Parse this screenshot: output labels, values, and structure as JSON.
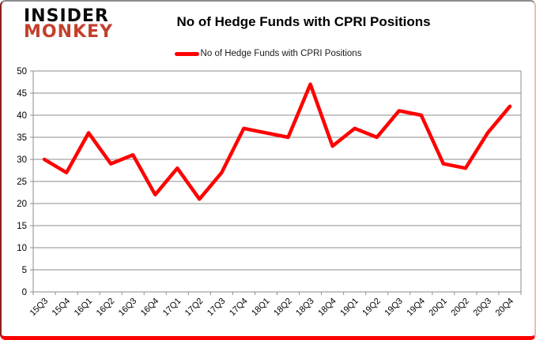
{
  "logo": {
    "line1": "INSIDER",
    "line2": "MONKEY"
  },
  "title": "No of Hedge Funds with CPRI Positions",
  "legend": {
    "label": "No of Hedge Funds with CPRI Positions"
  },
  "colors": {
    "line": "#fe0000",
    "grid": "#8e8e8e",
    "axis": "#8e8e8e",
    "text": "#000000",
    "logo_accent": "#c2402d",
    "border_bottom": "#fe0000"
  },
  "chart_data": {
    "type": "line",
    "title": "No of Hedge Funds with CPRI Positions",
    "categories": [
      "15Q3",
      "15Q4",
      "16Q1",
      "16Q2",
      "16Q3",
      "16Q4",
      "17Q1",
      "17Q2",
      "17Q3",
      "17Q4",
      "18Q1",
      "18Q2",
      "18Q3",
      "18Q4",
      "19Q1",
      "19Q2",
      "19Q3",
      "19Q4",
      "20Q1",
      "20Q2",
      "20Q3",
      "20Q4"
    ],
    "series": [
      {
        "name": "No of Hedge Funds with CPRI Positions",
        "color": "#fe0000",
        "values": [
          30,
          27,
          36,
          29,
          31,
          22,
          28,
          21,
          27,
          37,
          36,
          35,
          47,
          33,
          37,
          35,
          41,
          40,
          29,
          28,
          36,
          42
        ]
      }
    ],
    "xlabel": "",
    "ylabel": "",
    "ylim": [
      0,
      50
    ],
    "ytick_step": 5,
    "grid": true,
    "legend_position": "top"
  }
}
